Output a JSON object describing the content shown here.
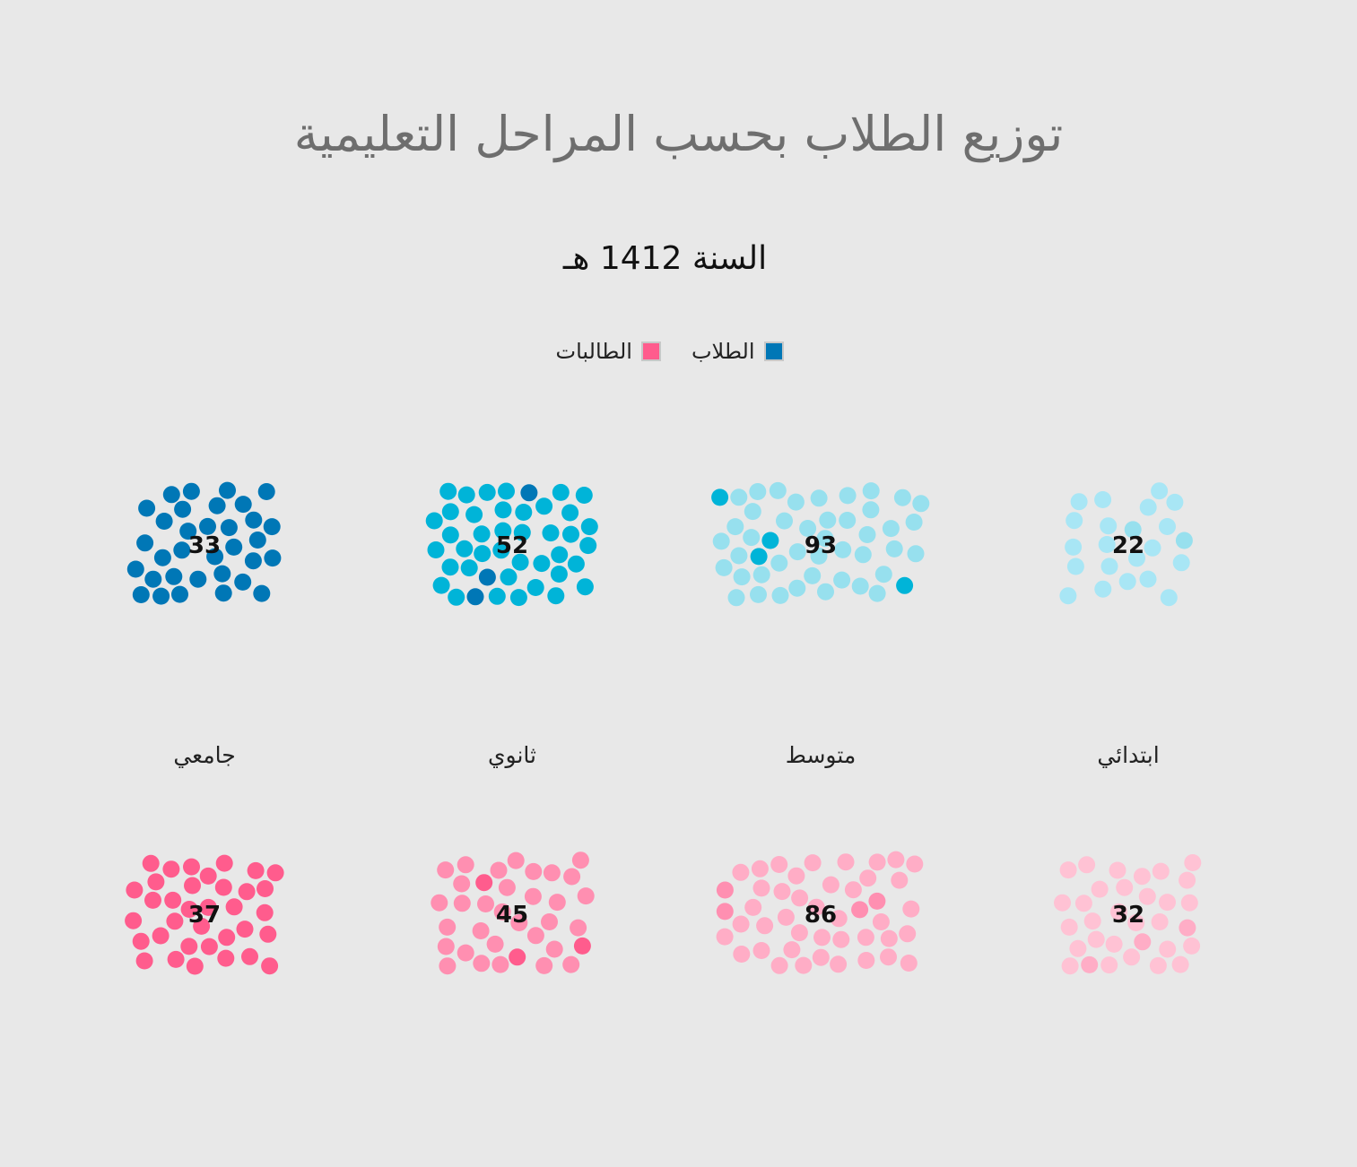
{
  "title": "توزيع الطلاب بحسب المراحل التعليمية",
  "subtitle": "السنة 1412 هـ",
  "legend": {
    "students": {
      "label": "الطلاب",
      "color": "#0077b6"
    },
    "female_students": {
      "label": "الطالبات",
      "color": "#ff5c8d"
    }
  },
  "chart_data": {
    "type": "beeswarm",
    "categories": [
      "ابتدائي",
      "متوسط",
      "ثانوي",
      "جامعي"
    ],
    "series": [
      {
        "name": "الطلاب",
        "values": [
          22,
          93,
          52,
          33
        ],
        "colors": [
          "#a8e6f5",
          "#97e0ee",
          "#00b4d8",
          "#0077b6"
        ],
        "accent": "#0077b6"
      },
      {
        "name": "الطالبات",
        "values": [
          32,
          86,
          45,
          37
        ],
        "colors": [
          "#ffc2d4",
          "#ffadc6",
          "#ff8fb1",
          "#ff5c8d"
        ],
        "accent": "#ff5c8d"
      }
    ]
  }
}
